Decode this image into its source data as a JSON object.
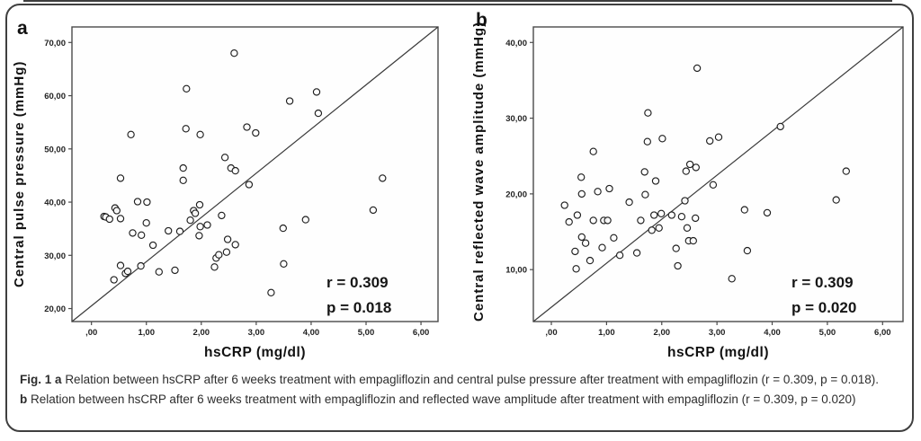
{
  "colors": {
    "frame": "#4a4a4a",
    "identity_line": "#3a3a3a",
    "marker_stroke": "#1f1f1f",
    "text": "#111111",
    "caption_text": "#2d2d2d",
    "border": "#3f3f3f",
    "background": "#ffffff",
    "plot_fill": "#fefefe"
  },
  "caption": {
    "fig_label": "Fig. 1",
    "panel_a_marker": "a",
    "part_a_text": "Relation between hsCRP after 6 weeks treatment with empagliflozin and central pulse pressure after treatment with empagliflozin (r = 0.309, p = 0.018).",
    "panel_b_marker": "b",
    "part_b_text": "Relation between hsCRP after 6 weeks treatment with empagliflozin and reflected wave amplitude after treatment with empagliflozin (r = 0.309, p = 0.020)"
  },
  "chart_data": [
    {
      "type": "scatter",
      "panel_label": "a",
      "xlabel": "hsCRP (mg/dl)",
      "ylabel": "Central pulse pressure (mmHg)",
      "marker": "open-circle",
      "identity_line": true,
      "legend": "none",
      "grid": false,
      "annotation": {
        "r_line": "r = 0.309",
        "p_line": "p = 0.018"
      },
      "x_tick_labels": [
        ",00",
        "1,00",
        "2,00",
        "3,00",
        "4,00",
        "5,00",
        "6,00"
      ],
      "x_tick_values": [
        0,
        1,
        2,
        3,
        4,
        5,
        6
      ],
      "y_tick_labels": [
        "20,00",
        "30,00",
        "40,00",
        "50,00",
        "60,00",
        "70,00"
      ],
      "y_tick_values": [
        20,
        30,
        40,
        50,
        60,
        70
      ],
      "xlim": [
        -0.355,
        6.31
      ],
      "ylim": [
        17.56,
        72.92
      ],
      "points": [
        [
          0.23,
          37.3
        ],
        [
          0.26,
          37.2
        ],
        [
          0.33,
          36.8
        ],
        [
          0.41,
          25.4
        ],
        [
          0.43,
          38.9
        ],
        [
          0.46,
          38.4
        ],
        [
          0.53,
          44.5
        ],
        [
          0.53,
          36.9
        ],
        [
          0.53,
          28.1
        ],
        [
          0.62,
          26.6
        ],
        [
          0.66,
          27.0
        ],
        [
          0.72,
          52.7
        ],
        [
          0.75,
          34.2
        ],
        [
          0.84,
          40.1
        ],
        [
          0.9,
          28.0
        ],
        [
          0.91,
          33.8
        ],
        [
          1.0,
          36.1
        ],
        [
          1.01,
          40.0
        ],
        [
          1.12,
          31.9
        ],
        [
          1.23,
          26.9
        ],
        [
          1.4,
          34.6
        ],
        [
          1.52,
          27.2
        ],
        [
          1.61,
          34.5
        ],
        [
          1.67,
          46.4
        ],
        [
          1.67,
          44.1
        ],
        [
          1.72,
          53.8
        ],
        [
          1.73,
          61.3
        ],
        [
          1.8,
          36.6
        ],
        [
          1.86,
          38.4
        ],
        [
          1.89,
          37.9
        ],
        [
          1.96,
          33.7
        ],
        [
          1.97,
          39.5
        ],
        [
          1.98,
          52.7
        ],
        [
          1.98,
          35.4
        ],
        [
          2.11,
          35.7
        ],
        [
          2.24,
          27.8
        ],
        [
          2.27,
          29.5
        ],
        [
          2.32,
          30.1
        ],
        [
          2.37,
          37.5
        ],
        [
          2.43,
          48.4
        ],
        [
          2.46,
          30.6
        ],
        [
          2.48,
          33.0
        ],
        [
          2.54,
          46.4
        ],
        [
          2.6,
          68.0
        ],
        [
          2.62,
          45.9
        ],
        [
          2.62,
          32.0
        ],
        [
          2.83,
          54.1
        ],
        [
          2.87,
          43.3
        ],
        [
          2.99,
          53.0
        ],
        [
          3.27,
          23.0
        ],
        [
          3.49,
          35.1
        ],
        [
          3.5,
          28.4
        ],
        [
          3.61,
          59.0
        ],
        [
          3.9,
          36.7
        ],
        [
          4.1,
          60.7
        ],
        [
          4.13,
          56.7
        ],
        [
          5.13,
          38.5
        ],
        [
          5.3,
          44.5
        ]
      ]
    },
    {
      "type": "scatter",
      "panel_label": "b",
      "xlabel": "hsCRP (mg/dl)",
      "ylabel": "Central reflected wave amplitude (mmHg)",
      "marker": "open-circle",
      "identity_line": true,
      "legend": "none",
      "grid": false,
      "annotation": {
        "r_line": "r = 0.309",
        "p_line": "p = 0.020"
      },
      "x_tick_labels": [
        ",00",
        "1,00",
        "2,00",
        "3,00",
        "4,00",
        "5,00",
        "6,00"
      ],
      "x_tick_values": [
        0,
        1,
        2,
        3,
        4,
        5,
        6
      ],
      "y_tick_labels": [
        "10,00",
        "20,00",
        "30,00",
        "40,00"
      ],
      "y_tick_values": [
        10,
        20,
        30,
        40
      ],
      "xlim": [
        -0.326,
        6.37
      ],
      "ylim": [
        3.14,
        42.05
      ],
      "points": [
        [
          0.24,
          18.5
        ],
        [
          0.32,
          16.3
        ],
        [
          0.43,
          12.4
        ],
        [
          0.45,
          10.1
        ],
        [
          0.47,
          17.2
        ],
        [
          0.54,
          22.2
        ],
        [
          0.55,
          20.0
        ],
        [
          0.55,
          14.3
        ],
        [
          0.62,
          13.5
        ],
        [
          0.7,
          11.2
        ],
        [
          0.76,
          25.6
        ],
        [
          0.76,
          16.5
        ],
        [
          0.84,
          20.3
        ],
        [
          0.92,
          12.9
        ],
        [
          0.95,
          16.5
        ],
        [
          1.02,
          16.5
        ],
        [
          1.05,
          20.7
        ],
        [
          1.13,
          14.2
        ],
        [
          1.24,
          11.9
        ],
        [
          1.41,
          18.9
        ],
        [
          1.55,
          12.2
        ],
        [
          1.62,
          16.5
        ],
        [
          1.69,
          22.9
        ],
        [
          1.7,
          19.9
        ],
        [
          1.74,
          26.9
        ],
        [
          1.75,
          30.7
        ],
        [
          1.82,
          15.2
        ],
        [
          1.86,
          17.2
        ],
        [
          1.89,
          21.7
        ],
        [
          1.95,
          15.5
        ],
        [
          1.99,
          17.4
        ],
        [
          2.01,
          27.3
        ],
        [
          2.18,
          17.2
        ],
        [
          2.26,
          12.8
        ],
        [
          2.29,
          10.5
        ],
        [
          2.36,
          17.0
        ],
        [
          2.42,
          19.1
        ],
        [
          2.44,
          23.0
        ],
        [
          2.46,
          15.5
        ],
        [
          2.49,
          13.8
        ],
        [
          2.51,
          23.9
        ],
        [
          2.57,
          13.8
        ],
        [
          2.61,
          16.8
        ],
        [
          2.62,
          23.5
        ],
        [
          2.64,
          36.6
        ],
        [
          2.87,
          27.0
        ],
        [
          2.93,
          21.2
        ],
        [
          3.03,
          27.5
        ],
        [
          3.27,
          8.8
        ],
        [
          3.5,
          17.9
        ],
        [
          3.55,
          12.5
        ],
        [
          3.91,
          17.5
        ],
        [
          4.15,
          28.9
        ],
        [
          5.16,
          19.2
        ],
        [
          5.34,
          23.0
        ]
      ]
    }
  ]
}
